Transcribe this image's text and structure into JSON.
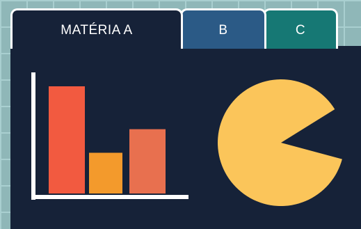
{
  "tabs": [
    {
      "label": "MATÉRIA A",
      "color": "#162238",
      "active": true
    },
    {
      "label": "B",
      "color": "#2b5a86",
      "active": false
    },
    {
      "label": "C",
      "color": "#167874",
      "active": false
    }
  ],
  "colors": {
    "background": "#8fb7b8",
    "panel": "#162238",
    "axis": "#ffffff",
    "pie": "#fbc55a"
  },
  "bar_chart": {
    "bars": [
      {
        "value": 1.0,
        "color": "#f25a40"
      },
      {
        "value": 0.38,
        "color": "#f39a2c"
      },
      {
        "value": 0.6,
        "color": "#e8704f"
      }
    ]
  },
  "pie_chart": {
    "slices": [
      {
        "share": 0.87,
        "color": "#fbc55a"
      },
      {
        "share": 0.13,
        "color": "missing"
      }
    ]
  }
}
